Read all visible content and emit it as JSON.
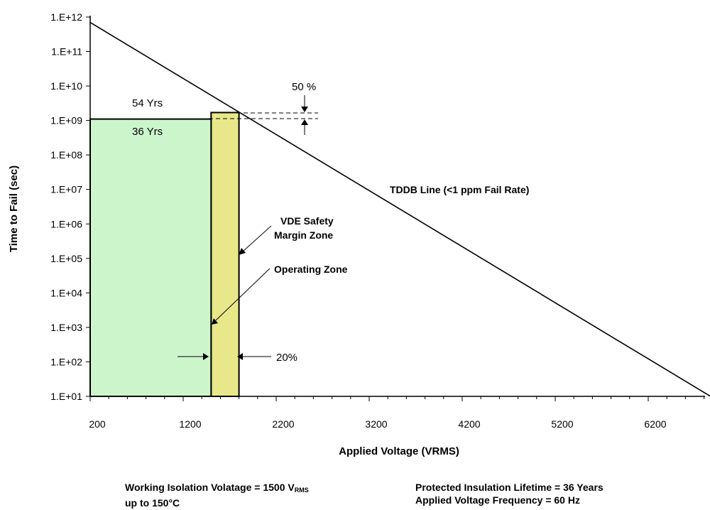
{
  "chart_data": {
    "type": "line",
    "title": "",
    "xlabel": "Applied Voltage (VRMS)",
    "ylabel": "Time to Fail (sec)",
    "xlim": [
      0,
      7000
    ],
    "x_ticks": [
      200,
      1200,
      2200,
      3200,
      4200,
      5200,
      6200
    ],
    "x_tick_labels": [
      "200",
      "1200",
      "2200",
      "3200",
      "4200",
      "5200",
      "6200"
    ],
    "y_scale": "log",
    "ylim": [
      10,
      1000000000000
    ],
    "y_ticks": [
      10,
      100,
      1000,
      10000,
      100000,
      1000000,
      10000000,
      100000000,
      1000000000,
      10000000000,
      100000000000,
      1000000000000
    ],
    "y_tick_labels": [
      "1.E+01",
      "1.E+02",
      "1.E+03",
      "1.E+04",
      "1.E+05",
      "1.E+06",
      "1.E+07",
      "1.E+08",
      "1.E+09",
      "1.E+10",
      "1.E+11",
      "1.E+12"
    ],
    "grid": false,
    "series": [
      {
        "name": "TDDB Line (<1 ppm Fail Rate)",
        "x": [
          200,
          6870
        ],
        "y": [
          700000000000,
          10
        ],
        "color": "#000000"
      }
    ],
    "zones": [
      {
        "name": "Operating Zone",
        "x": [
          200,
          1500
        ],
        "y": [
          10,
          1100000000
        ],
        "color": "#ccf5cc",
        "label": "36 Yrs"
      },
      {
        "name": "VDE Safety Margin Zone",
        "x": [
          1500,
          1800
        ],
        "y": [
          10,
          1700000000
        ],
        "color": "#e8e88a",
        "label": "54 Yrs"
      }
    ],
    "annotations": {
      "tddb": "TDDB Line (<1 ppm Fail Rate)",
      "vde_line1": "VDE Safety",
      "vde_line2": "Margin Zone",
      "operating": "Operating Zone",
      "pct50": "50 %",
      "pct20": "20%",
      "yrs54": "54 Yrs",
      "yrs36": "36 Yrs"
    }
  },
  "footer": {
    "left_line1_prefix": "Working Isolation Volatage = 1500 V",
    "left_line1_sub": "RMS",
    "left_line2": "up to 150°C",
    "right_line1": "Protected Insulation Lifetime = 36 Years",
    "right_line2": "Applied Voltage Frequency = 60 Hz"
  }
}
